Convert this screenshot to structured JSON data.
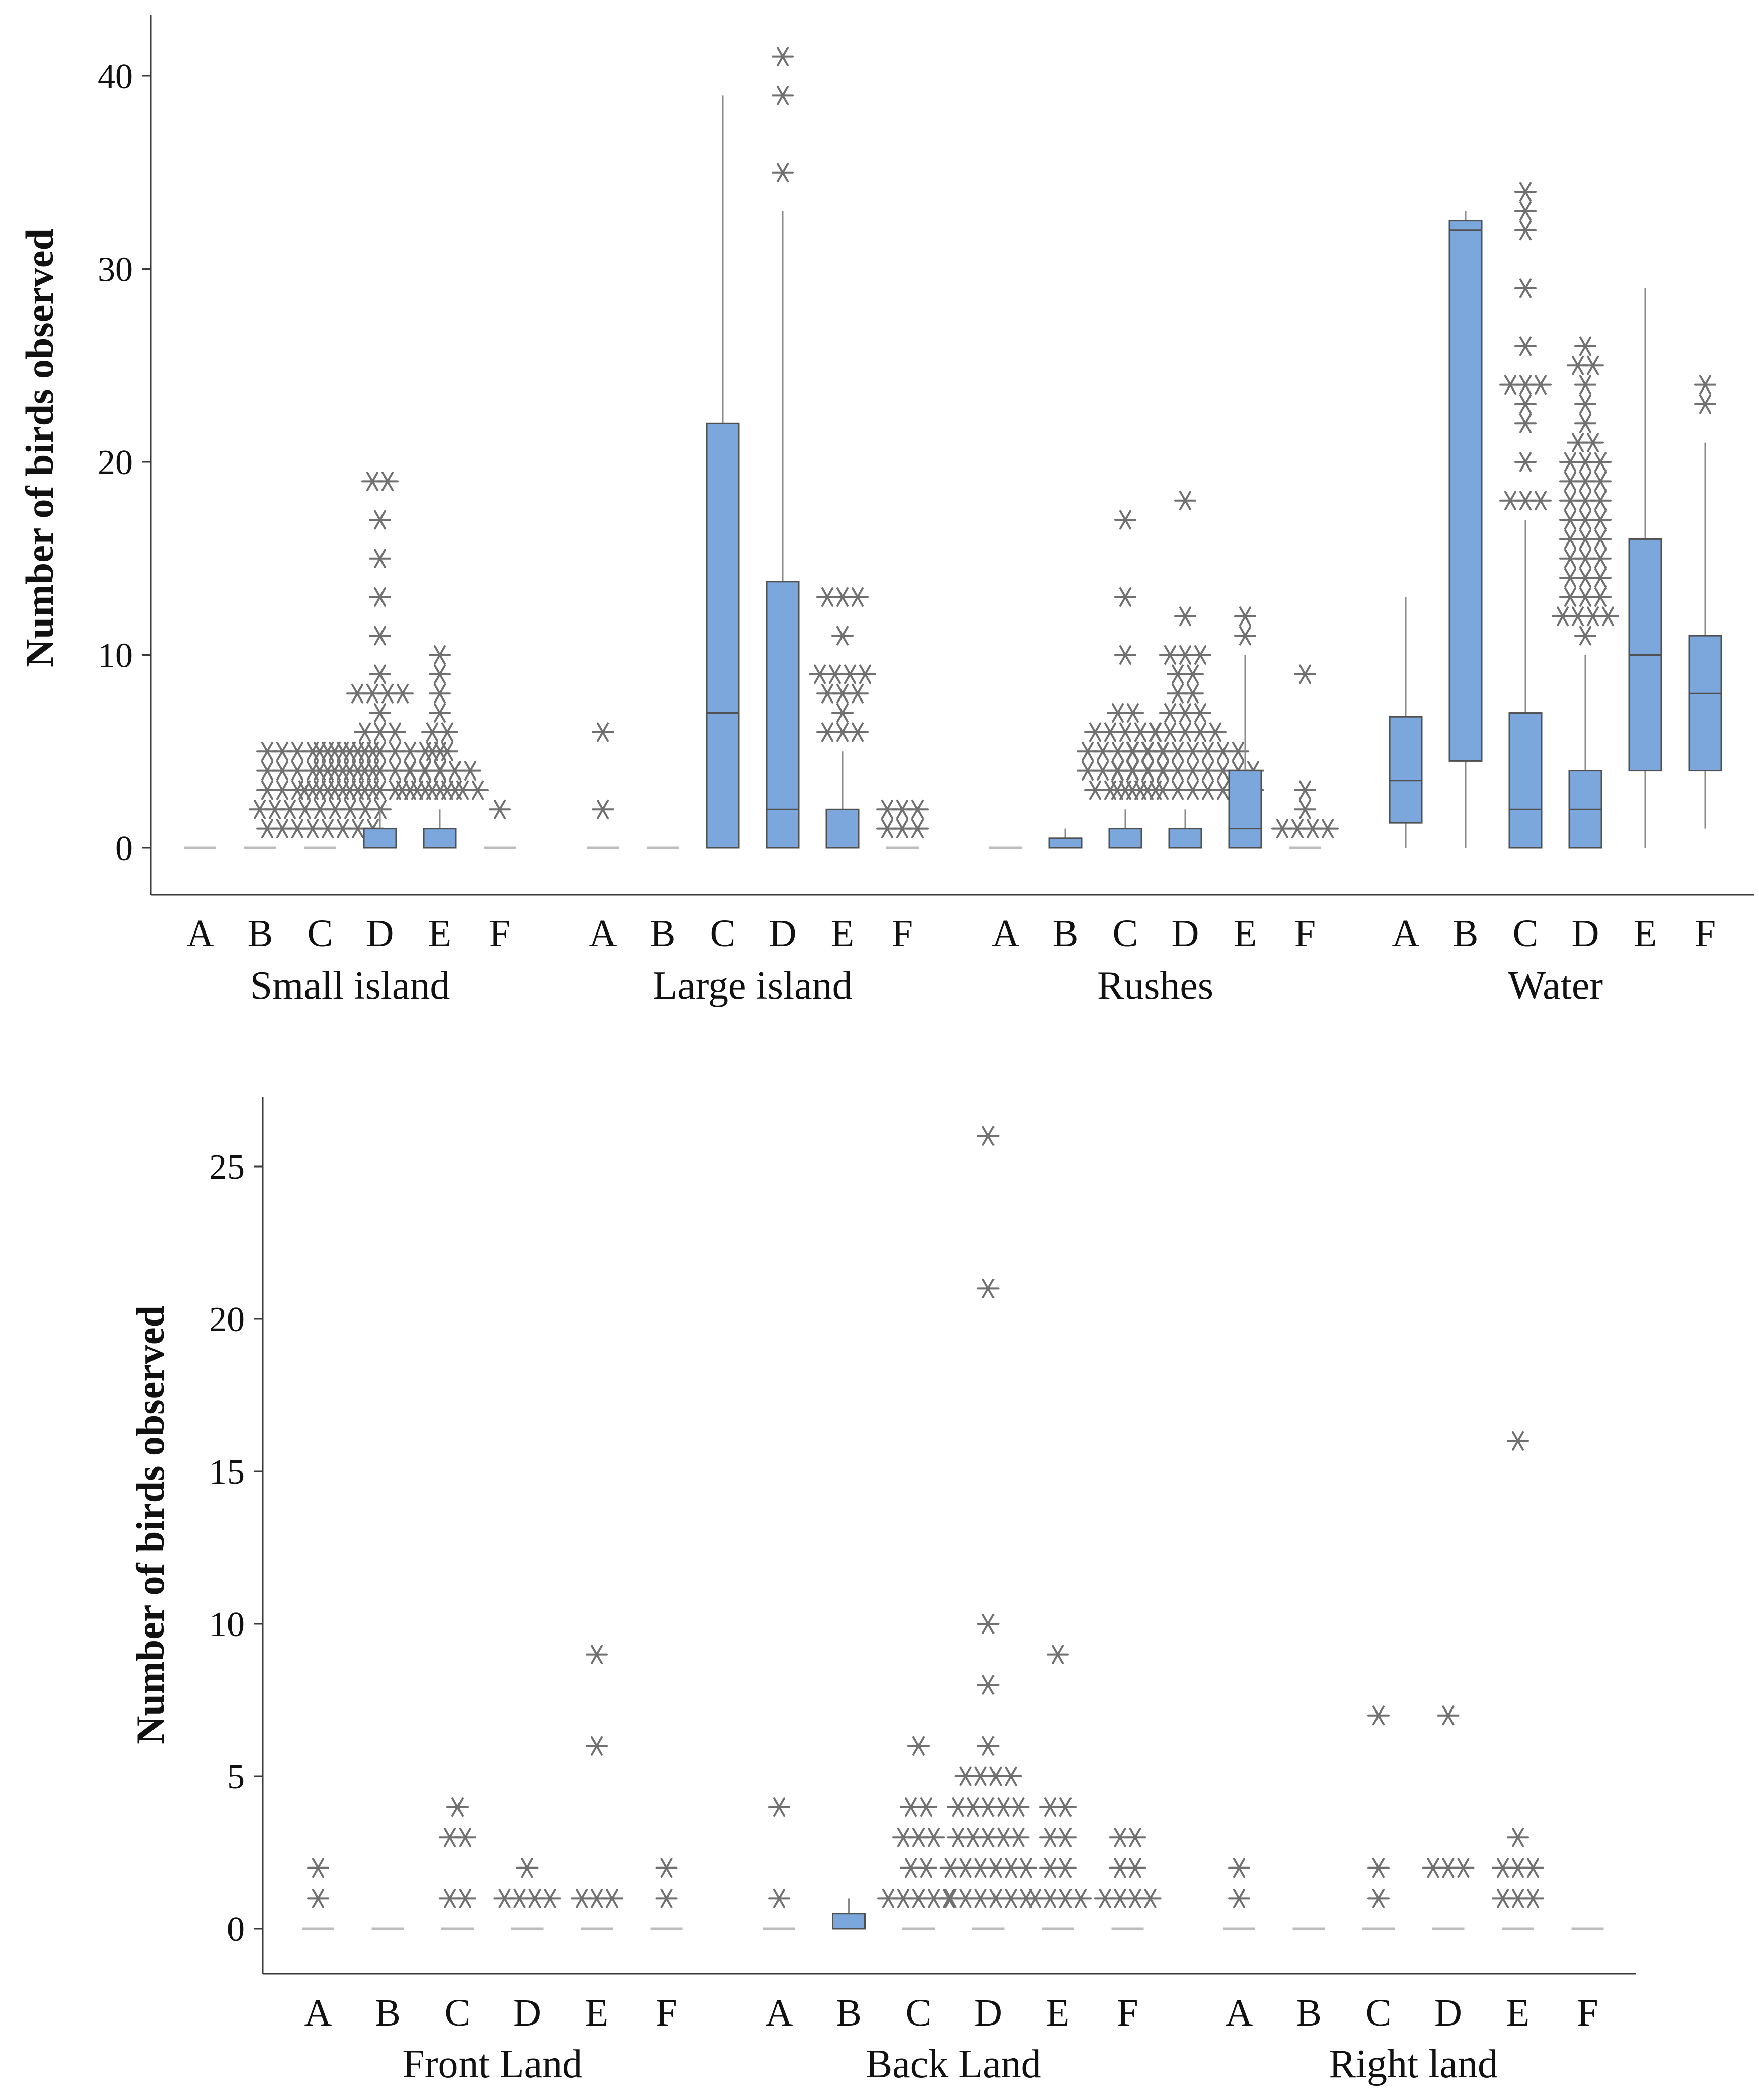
{
  "chart_data": [
    {
      "type": "box",
      "title": "",
      "ylabel": "Number of birds observed",
      "ylim": [
        -2.5,
        43
      ],
      "yticks": [
        0,
        10,
        20,
        30,
        40
      ],
      "colors": {
        "box": "#7ba7dd",
        "marker": "#707070"
      },
      "groups": [
        {
          "name": "Small island",
          "categories": [
            {
              "label": "A",
              "box": null,
              "outliers": []
            },
            {
              "label": "B",
              "box": null,
              "outliers": []
            },
            {
              "label": "C",
              "box": null,
              "outliers": [
                1,
                1,
                1,
                1,
                1,
                1,
                1,
                1,
                2,
                2,
                2,
                2,
                2,
                2,
                2,
                2,
                2,
                3,
                3,
                3,
                3,
                3,
                3,
                3,
                3,
                4,
                4,
                4,
                4,
                4,
                4,
                4,
                4,
                5,
                5,
                5,
                5,
                5,
                5,
                5,
                5
              ]
            },
            {
              "label": "D",
              "box": {
                "q1": 0,
                "median": 0,
                "q3": 1,
                "whisker_low": 0,
                "whisker_high": 2
              },
              "outliers": [
                3,
                3,
                3,
                3,
                3,
                3,
                3,
                3,
                3,
                3,
                3,
                4,
                4,
                4,
                4,
                4,
                4,
                4,
                4,
                4,
                5,
                5,
                5,
                5,
                5,
                5,
                5,
                5,
                5,
                6,
                6,
                6,
                7,
                8,
                8,
                8,
                8,
                9,
                11,
                13,
                15,
                17,
                19,
                19
              ]
            },
            {
              "label": "E",
              "box": {
                "q1": 0,
                "median": 0,
                "q3": 1,
                "whisker_low": 0,
                "whisker_high": 2
              },
              "outliers": [
                3,
                3,
                3,
                3,
                3,
                3,
                4,
                4,
                4,
                4,
                4,
                5,
                5,
                6,
                6,
                7,
                8,
                9,
                10
              ]
            },
            {
              "label": "F",
              "box": null,
              "outliers": [
                2
              ]
            }
          ]
        },
        {
          "name": "Large island",
          "categories": [
            {
              "label": "A",
              "box": null,
              "outliers": [
                2,
                6
              ]
            },
            {
              "label": "B",
              "box": null,
              "outliers": []
            },
            {
              "label": "C",
              "box": {
                "q1": 0,
                "median": 7,
                "q3": 22,
                "whisker_low": 0,
                "whisker_high": 39
              },
              "outliers": []
            },
            {
              "label": "D",
              "box": {
                "q1": 0,
                "median": 2,
                "q3": 13.8,
                "whisker_low": 0,
                "whisker_high": 33
              },
              "outliers": [
                35,
                39,
                41
              ]
            },
            {
              "label": "E",
              "box": {
                "q1": 0,
                "median": 0,
                "q3": 2,
                "whisker_low": 0,
                "whisker_high": 5
              },
              "outliers": [
                6,
                6,
                6,
                7,
                8,
                8,
                8,
                9,
                9,
                9,
                9,
                11,
                13,
                13,
                13
              ]
            },
            {
              "label": "F",
              "box": null,
              "outliers": [
                1,
                1,
                1,
                2,
                2,
                2
              ]
            }
          ]
        },
        {
          "name": "Rushes",
          "categories": [
            {
              "label": "A",
              "box": null,
              "outliers": []
            },
            {
              "label": "B",
              "box": {
                "q1": 0,
                "median": 0,
                "q3": 0.5,
                "whisker_low": 0,
                "whisker_high": 1
              },
              "outliers": []
            },
            {
              "label": "C",
              "box": {
                "q1": 0,
                "median": 0,
                "q3": 1,
                "whisker_low": 0,
                "whisker_high": 2
              },
              "outliers": [
                3,
                3,
                3,
                3,
                3,
                4,
                4,
                4,
                4,
                4,
                4,
                5,
                5,
                5,
                5,
                5,
                5,
                6,
                6,
                6,
                6,
                6,
                7,
                7,
                10,
                13,
                17
              ]
            },
            {
              "label": "D",
              "box": {
                "q1": 0,
                "median": 0,
                "q3": 1,
                "whisker_low": 0,
                "whisker_high": 2
              },
              "outliers": [
                3,
                3,
                3,
                3,
                3,
                3,
                3,
                3,
                3,
                3,
                4,
                4,
                4,
                4,
                4,
                4,
                4,
                4,
                4,
                4,
                5,
                5,
                5,
                5,
                5,
                5,
                5,
                5,
                6,
                6,
                6,
                6,
                6,
                7,
                7,
                7,
                8,
                8,
                9,
                9,
                10,
                10,
                10,
                12,
                18
              ]
            },
            {
              "label": "E",
              "box": {
                "q1": 0,
                "median": 1,
                "q3": 4,
                "whisker_low": 0,
                "whisker_high": 10
              },
              "outliers": [
                11,
                12
              ]
            },
            {
              "label": "F",
              "box": null,
              "outliers": [
                1,
                1,
                1,
                1,
                2,
                3,
                9
              ]
            }
          ]
        },
        {
          "name": "Water",
          "categories": [
            {
              "label": "A",
              "box": {
                "q1": 1.3,
                "median": 3.5,
                "q3": 6.8,
                "whisker_low": 0,
                "whisker_high": 13
              },
              "outliers": []
            },
            {
              "label": "B",
              "box": {
                "q1": 4.5,
                "median": 32,
                "q3": 32.5,
                "whisker_low": 0,
                "whisker_high": 33
              },
              "outliers": []
            },
            {
              "label": "C",
              "box": {
                "q1": 0,
                "median": 2,
                "q3": 7,
                "whisker_low": 0,
                "whisker_high": 17
              },
              "outliers": [
                18,
                18,
                18,
                20,
                22,
                23,
                24,
                24,
                24,
                26,
                29,
                32,
                33,
                34
              ]
            },
            {
              "label": "D",
              "box": {
                "q1": 0,
                "median": 2,
                "q3": 4,
                "whisker_low": 0,
                "whisker_high": 10
              },
              "outliers": [
                11,
                12,
                12,
                12,
                12,
                13,
                13,
                13,
                14,
                14,
                14,
                15,
                15,
                15,
                16,
                16,
                16,
                17,
                17,
                17,
                18,
                18,
                18,
                19,
                19,
                19,
                20,
                20,
                20,
                21,
                21,
                22,
                23,
                24,
                25,
                25,
                26
              ]
            },
            {
              "label": "E",
              "box": {
                "q1": 4,
                "median": 10,
                "q3": 16,
                "whisker_low": 0,
                "whisker_high": 29
              },
              "outliers": []
            },
            {
              "label": "F",
              "box": {
                "q1": 4,
                "median": 8,
                "q3": 11,
                "whisker_low": 1,
                "whisker_high": 21
              },
              "outliers": [
                23,
                24
              ]
            }
          ]
        }
      ]
    },
    {
      "type": "box",
      "title": "",
      "ylabel": "Number of birds observed",
      "ylim": [
        -1.5,
        27.2
      ],
      "yticks": [
        0,
        5,
        10,
        15,
        20,
        25
      ],
      "colors": {
        "box": "#7ba7dd",
        "marker": "#707070"
      },
      "groups": [
        {
          "name": "Front Land",
          "categories": [
            {
              "label": "A",
              "box": null,
              "outliers": [
                1,
                2
              ]
            },
            {
              "label": "B",
              "box": null,
              "outliers": []
            },
            {
              "label": "C",
              "box": null,
              "outliers": [
                1,
                1,
                3,
                3,
                4
              ]
            },
            {
              "label": "D",
              "box": null,
              "outliers": [
                1,
                1,
                1,
                1,
                2
              ]
            },
            {
              "label": "E",
              "box": null,
              "outliers": [
                1,
                1,
                1,
                6,
                9
              ]
            },
            {
              "label": "F",
              "box": null,
              "outliers": [
                1,
                2
              ]
            }
          ]
        },
        {
          "name": "Back Land",
          "categories": [
            {
              "label": "A",
              "box": null,
              "outliers": [
                1,
                4
              ]
            },
            {
              "label": "B",
              "box": {
                "q1": 0,
                "median": 0,
                "q3": 0.5,
                "whisker_low": 0,
                "whisker_high": 1
              },
              "outliers": []
            },
            {
              "label": "C",
              "box": null,
              "outliers": [
                1,
                1,
                1,
                1,
                1,
                2,
                2,
                3,
                3,
                3,
                4,
                4,
                6
              ]
            },
            {
              "label": "D",
              "box": null,
              "outliers": [
                1,
                1,
                1,
                1,
                1,
                1,
                2,
                2,
                2,
                2,
                2,
                2,
                3,
                3,
                3,
                3,
                3,
                4,
                4,
                4,
                4,
                4,
                5,
                5,
                5,
                5,
                6,
                8,
                10,
                21,
                26
              ]
            },
            {
              "label": "E",
              "box": null,
              "outliers": [
                1,
                1,
                1,
                1,
                2,
                2,
                3,
                3,
                4,
                4,
                9
              ]
            },
            {
              "label": "F",
              "box": null,
              "outliers": [
                1,
                1,
                1,
                1,
                2,
                2,
                3,
                3
              ]
            }
          ]
        },
        {
          "name": "Right land",
          "categories": [
            {
              "label": "A",
              "box": null,
              "outliers": [
                1,
                2
              ]
            },
            {
              "label": "B",
              "box": null,
              "outliers": []
            },
            {
              "label": "C",
              "box": null,
              "outliers": [
                1,
                2,
                7
              ]
            },
            {
              "label": "D",
              "box": null,
              "outliers": [
                2,
                2,
                2,
                7
              ]
            },
            {
              "label": "E",
              "box": null,
              "outliers": [
                1,
                1,
                1,
                2,
                2,
                2,
                3,
                16
              ]
            },
            {
              "label": "F",
              "box": null,
              "outliers": []
            }
          ]
        }
      ]
    }
  ]
}
